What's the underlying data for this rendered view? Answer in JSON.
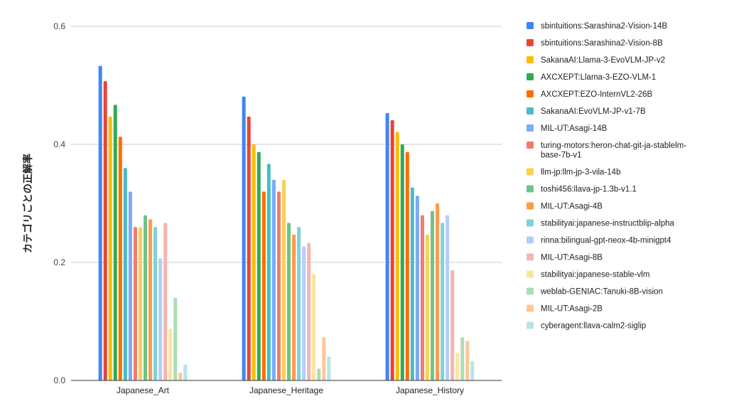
{
  "chart_data": {
    "type": "bar",
    "title": "",
    "xlabel": "",
    "ylabel": "カテゴリごとの正解率",
    "ylim": [
      0,
      0.6
    ],
    "yticks": [
      "0.0",
      "0.2",
      "0.4",
      "0.6"
    ],
    "grid": true,
    "legend_position": "right",
    "categories": [
      "Japanese_Art",
      "Japanese_Heritage",
      "Japanese_History"
    ],
    "series": [
      {
        "name": "sbintuitions:Sarashina2-Vision-14B",
        "color": "#4285F4",
        "values": [
          0.533,
          0.481,
          0.453
        ]
      },
      {
        "name": "sbintuitions:Sarashina2-Vision-8B",
        "color": "#EA4335",
        "values": [
          0.507,
          0.447,
          0.441
        ]
      },
      {
        "name": "SakanaAI:Llama-3-EvoVLM-JP-v2",
        "color": "#FBBC04",
        "values": [
          0.447,
          0.4,
          0.421
        ]
      },
      {
        "name": "AXCXEPT:Llama-3-EZO-VLM-1",
        "color": "#34A853",
        "values": [
          0.467,
          0.387,
          0.4
        ]
      },
      {
        "name": "AXCXEPT:EZO-InternVL2-26B",
        "color": "#FF6D01",
        "values": [
          0.413,
          0.32,
          0.387
        ]
      },
      {
        "name": "SakanaAI:EvoVLM-JP-v1-7B",
        "color": "#46BDC6",
        "values": [
          0.36,
          0.367,
          0.327
        ]
      },
      {
        "name": "MIL-UT:Asagi-14B",
        "color": "#7BAAF7",
        "values": [
          0.32,
          0.34,
          0.313
        ]
      },
      {
        "name": "turing-motors:heron-chat-git-ja-stablelm-base-7b-v1",
        "color": "#F07B72",
        "values": [
          0.26,
          0.32,
          0.28
        ]
      },
      {
        "name": "llm-jp:llm-jp-3-vila-14b",
        "color": "#FCD04F",
        "values": [
          0.26,
          0.34,
          0.247
        ]
      },
      {
        "name": "toshi456:llava-jp-1.3b-v1.1",
        "color": "#71C287",
        "values": [
          0.28,
          0.267,
          0.287
        ]
      },
      {
        "name": "MIL-UT:Asagi-4B",
        "color": "#FF994D",
        "values": [
          0.273,
          0.247,
          0.3
        ]
      },
      {
        "name": "stabilityai:japanese-instructblip-alpha",
        "color": "#7ED1D7",
        "values": [
          0.26,
          0.26,
          0.267
        ]
      },
      {
        "name": "rinna:bilingual-gpt-neox-4b-minigpt4",
        "color": "#B3CEFB",
        "values": [
          0.207,
          0.227,
          0.28
        ]
      },
      {
        "name": "MIL-UT:Asagi-8B",
        "color": "#F7B4AE",
        "values": [
          0.267,
          0.233,
          0.187
        ]
      },
      {
        "name": "stabilityai:japanese-stable-vlm",
        "color": "#FDE49B",
        "values": [
          0.087,
          0.18,
          0.047
        ]
      },
      {
        "name": "weblab-GENIAC:Tanuki-8B-vision",
        "color": "#ADDCB9",
        "values": [
          0.14,
          0.02,
          0.073
        ]
      },
      {
        "name": "MIL-UT:Asagi-2B",
        "color": "#FFC599",
        "values": [
          0.013,
          0.073,
          0.067
        ]
      },
      {
        "name": "cyberagent:llava-calm2-siglip",
        "color": "#B5E5E8",
        "values": [
          0.027,
          0.04,
          0.033
        ]
      }
    ]
  }
}
